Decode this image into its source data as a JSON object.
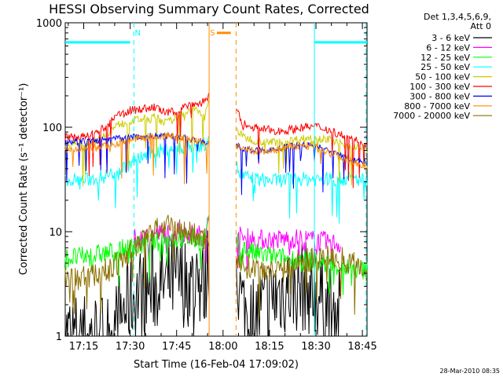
{
  "chart_data": {
    "type": "line",
    "title": "HESSI Observing Summary Count Rates, Corrected",
    "xlabel": "Start Time (16-Feb-04 17:09:02)",
    "ylabel": "Corrected Count Rate (s⁻¹ detector⁻¹)",
    "y_scale": "log",
    "ylim": [
      1,
      1000
    ],
    "xlim": [
      9.03,
      106.5
    ],
    "x_units": "minutes after 17:00 UT",
    "grid": false,
    "legend_position": "right",
    "legend_header": [
      "Det 1,3,4,5,6,9,",
      "Att 0"
    ],
    "x_tick_labels": [
      "17:15",
      "17:30",
      "17:45",
      "18:00",
      "18:15",
      "18:30",
      "18:45"
    ],
    "x_ticks": [
      15,
      30,
      45,
      60,
      75,
      90,
      105
    ],
    "y_tick_labels": [
      "1",
      "10",
      "100",
      "1000"
    ],
    "y_ticks": [
      1,
      10,
      100,
      1000
    ],
    "gap": [
      55.5,
      64.2
    ],
    "annotations": [
      {
        "text": "N",
        "x": 31.5,
        "color": "#00ffff"
      },
      {
        "text": "S",
        "x": 55.8,
        "color": "#ff8c00"
      }
    ],
    "night_bars": [
      {
        "name": "N",
        "color": "#00ffff",
        "spans": [
          [
            9.03,
            30
          ],
          [
            89.5,
            106.5
          ]
        ],
        "boundaries": [
          31.2,
          89.5,
          106.2
        ],
        "y": 650
      },
      {
        "name": "S",
        "color": "#ff8c00",
        "spans": [
          [
            58,
            62.5
          ]
        ],
        "boundaries": [
          55.5,
          64.2
        ],
        "y": 800
      }
    ],
    "series": [
      {
        "name": "3 - 6 keV",
        "color": "#000000",
        "x": [
          9,
          14,
          17,
          20,
          24,
          27,
          30,
          33,
          36,
          40,
          44,
          48,
          52,
          54,
          55.5,
          64.2,
          66,
          68,
          70,
          74,
          78,
          82,
          86,
          90,
          94,
          98
        ],
        "y": [
          1,
          1,
          1,
          1,
          1,
          1.6,
          2.3,
          2.6,
          2.9,
          3.1,
          3.3,
          3.4,
          3.2,
          3.0,
          6.0,
          5.0,
          2.0,
          1.6,
          1.5,
          2.0,
          2.6,
          2.9,
          3.0,
          2.6,
          1.9,
          1.5
        ],
        "jitter": 0.45
      },
      {
        "name": "6 - 12 keV",
        "color": "#ff00ff",
        "x": [
          31,
          34,
          38,
          42,
          46,
          50,
          54,
          55.5,
          64.2,
          66,
          70,
          74,
          78,
          82,
          86,
          90,
          94,
          98
        ],
        "y": [
          8.4,
          8.8,
          9.3,
          9.8,
          10.0,
          9.6,
          9.0,
          13.0,
          9.5,
          8.8,
          8.5,
          8.3,
          8.4,
          8.6,
          8.5,
          8.2,
          8.0,
          7.6
        ],
        "jitter": 0.1
      },
      {
        "name": "12 - 25 keV",
        "color": "#00ff00",
        "x": [
          9,
          14,
          18,
          22,
          26,
          30,
          34,
          38,
          42,
          46,
          50,
          54,
          55.5,
          64.2,
          66,
          70,
          74,
          78,
          82,
          86,
          90,
          94,
          98,
          102,
          106.5
        ],
        "y": [
          5.6,
          5.7,
          5.9,
          6.2,
          6.6,
          7.0,
          7.5,
          8.0,
          8.4,
          8.6,
          8.5,
          8.2,
          12.0,
          8.0,
          7.0,
          6.2,
          5.9,
          5.6,
          5.5,
          5.3,
          5.1,
          4.9,
          4.6,
          4.4,
          4.2
        ],
        "jitter": 0.1
      },
      {
        "name": "25 - 50 keV",
        "color": "#00ffff",
        "x": [
          9,
          14,
          18,
          22,
          26,
          30,
          34,
          38,
          42,
          46,
          50,
          54,
          55.5,
          64.2,
          66,
          70,
          74,
          78,
          82,
          86,
          90,
          94,
          98,
          102,
          106.5
        ],
        "y": [
          32,
          31,
          32,
          34,
          38,
          45,
          52,
          58,
          62,
          64,
          66,
          68,
          90,
          42,
          34,
          32,
          31,
          31,
          32,
          32,
          32,
          32,
          32,
          32,
          31
        ],
        "jitter": 0.07
      },
      {
        "name": "50 - 100 keV",
        "color": "#cccc00",
        "x": [
          9,
          14,
          18,
          22,
          26,
          30,
          34,
          38,
          42,
          46,
          50,
          52,
          54,
          55.5,
          64.2,
          66,
          70,
          74,
          78,
          82,
          86,
          90,
          94,
          98,
          102,
          106.5
        ],
        "y": [
          68,
          68,
          72,
          85,
          105,
          115,
          120,
          125,
          110,
          130,
          150,
          140,
          125,
          180,
          100,
          82,
          75,
          72,
          72,
          75,
          78,
          80,
          76,
          70,
          65,
          62
        ],
        "jitter": 0.04
      },
      {
        "name": "100 - 300 keV",
        "color": "#ff0000",
        "x": [
          9,
          14,
          18,
          22,
          26,
          30,
          34,
          38,
          42,
          46,
          50,
          52,
          54,
          55.5,
          64.2,
          66,
          70,
          74,
          78,
          82,
          86,
          90,
          94,
          98,
          102,
          106.5
        ],
        "y": [
          80,
          80,
          85,
          100,
          130,
          145,
          150,
          155,
          135,
          150,
          170,
          165,
          180,
          200,
          150,
          110,
          100,
          95,
          92,
          95,
          100,
          102,
          95,
          85,
          76,
          70
        ],
        "jitter": 0.04
      },
      {
        "name": "300 - 800 keV",
        "color": "#0000ff",
        "x": [
          9,
          14,
          18,
          22,
          26,
          30,
          34,
          38,
          42,
          46,
          50,
          54,
          55.5,
          64.2,
          66,
          70,
          74,
          78,
          82,
          86,
          90,
          94,
          98,
          102,
          106.5
        ],
        "y": [
          73,
          73,
          74,
          76,
          78,
          80,
          82,
          83,
          84,
          81,
          76,
          72,
          70,
          68,
          62,
          60,
          60,
          62,
          66,
          68,
          66,
          60,
          54,
          49,
          45
        ],
        "jitter": 0.03
      },
      {
        "name": "800 - 7000 keV",
        "color": "#ff8c00",
        "x": [
          9,
          14,
          18,
          22,
          26,
          30,
          34,
          38,
          42,
          46,
          50,
          54,
          55.5,
          64.2,
          66,
          70,
          74,
          78,
          82,
          86,
          90,
          94,
          98,
          102,
          106.5
        ],
        "y": [
          62,
          60,
          62,
          66,
          71,
          76,
          79,
          81,
          82,
          80,
          75,
          70,
          68,
          66,
          61,
          59,
          59,
          61,
          65,
          67,
          64,
          58,
          52,
          47,
          43
        ],
        "jitter": 0.04
      },
      {
        "name": "7000 - 20000 keV",
        "color": "#8b7000",
        "x": [
          9,
          14,
          18,
          22,
          26,
          30,
          34,
          38,
          42,
          46,
          50,
          54,
          55.5,
          64.2,
          66,
          70,
          74,
          78,
          82,
          86,
          90,
          94,
          98,
          102,
          106.5
        ],
        "y": [
          3.6,
          3.6,
          3.8,
          4.2,
          4.8,
          6.5,
          8.5,
          10.5,
          11.0,
          10.5,
          9.5,
          8.6,
          8.0,
          6.0,
          4.8,
          4.5,
          4.5,
          4.6,
          4.8,
          5.2,
          5.6,
          5.8,
          5.6,
          5.0,
          4.3
        ],
        "jitter": 0.12
      }
    ]
  },
  "timestamp": "28-Mar-2010 08:35"
}
